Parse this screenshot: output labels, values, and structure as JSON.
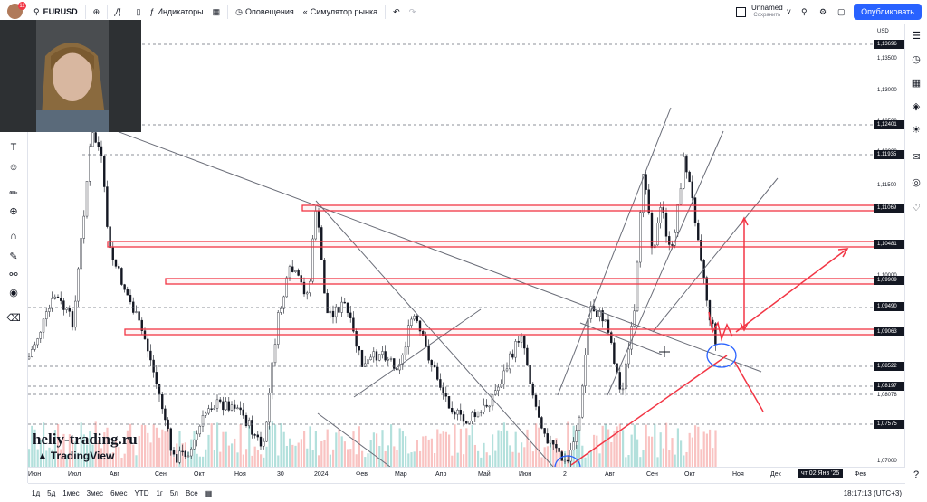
{
  "topbar": {
    "avatar_badge": "11",
    "symbol": "EURUSD",
    "indicators_label": "Индикаторы",
    "alerts_label": "Оповещения",
    "simulator_label": "Симулятор рынка",
    "layout_name": "Unnamed",
    "layout_status": "Сохранить",
    "publish_label": "Опубликовать"
  },
  "price_axis": {
    "currency": "USD",
    "ticks": [
      "1,13500",
      "1,13000",
      "1,12500",
      "1,12000",
      "1,11500",
      "1,10000",
      "1,07000"
    ],
    "boxes": [
      "1,13696",
      "1,12401",
      "1,11935",
      "1,11069",
      "1,10481",
      "1,09909",
      "1,09490",
      "1,09063",
      "1,08522",
      "1,08197",
      "1,08078",
      "1,07575"
    ]
  },
  "time_axis": {
    "labels": [
      "Июн",
      "Июл",
      "Авг",
      "Сен",
      "Окт",
      "Ноя",
      "30",
      "2024",
      "Фев",
      "Мар",
      "Апр",
      "Май",
      "Июн",
      "2",
      "Авг",
      "Сен",
      "Окт",
      "Ноя",
      "Дек",
      "Фев"
    ],
    "crosshair_date": "чт 02 Янв '25"
  },
  "bottom_bar": {
    "ranges": [
      "1д",
      "5д",
      "1мес",
      "3мес",
      "6мес",
      "YTD",
      "1г",
      "5л",
      "Все"
    ],
    "clock": "18:17:13 (UTC+3)"
  },
  "watermark": {
    "site": "heliy-trading.ru",
    "brand": "TradingView"
  },
  "colors": {
    "accent": "#2962ff",
    "level_line": "#f23645",
    "bull": "#26a69a",
    "bear": "#ef5350"
  },
  "icons": [
    "search-icon",
    "plus-icon",
    "bar-style-icon",
    "indicators-icon",
    "layout-icon",
    "alert-icon",
    "replay-icon",
    "undo-icon",
    "redo-icon",
    "settings-icon",
    "fullscreen-icon",
    "camera-icon",
    "watchlist-icon",
    "clock-icon",
    "calendar-icon",
    "layers-icon",
    "idea-icon",
    "chat-icon",
    "bell-icon"
  ]
}
